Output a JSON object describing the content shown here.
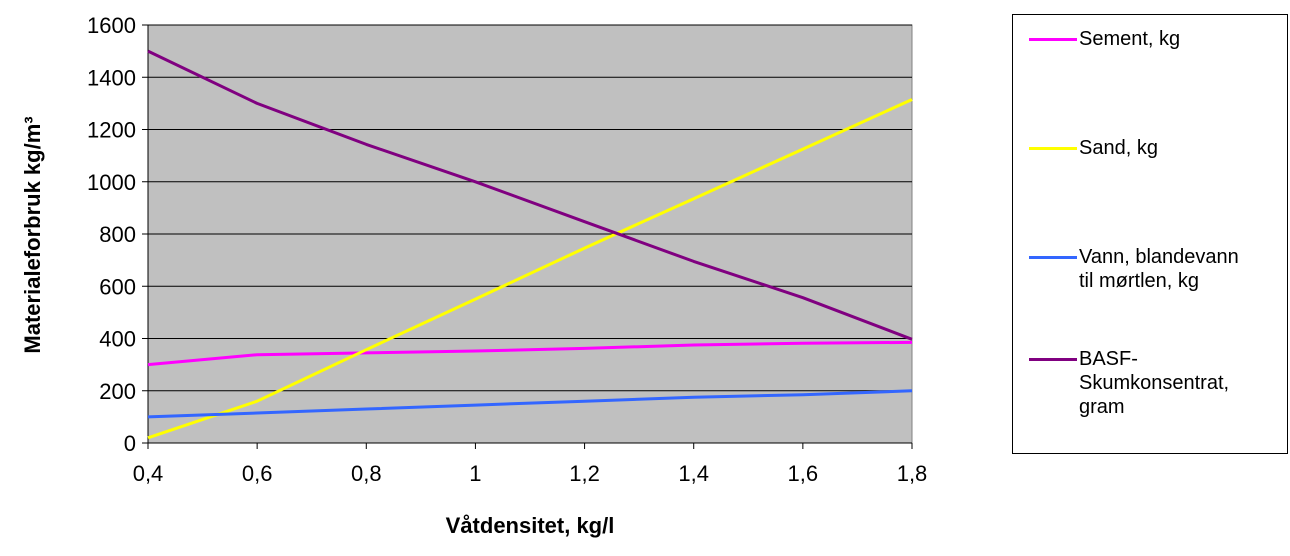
{
  "chart_data": {
    "type": "line",
    "title": "",
    "xlabel": "Våtdensitet, kg/l",
    "ylabel": "Materialeforbruk kg/m³",
    "x": [
      "0,4",
      "0,6",
      "0,8",
      "1",
      "1,2",
      "1,4",
      "1,6",
      "1,8"
    ],
    "ylim": [
      0,
      1600
    ],
    "yticks": [
      "0",
      "200",
      "400",
      "600",
      "800",
      "1000",
      "1200",
      "1400",
      "1600"
    ],
    "grid": true,
    "legend_position": "right",
    "plot_background": "#c0c0c0",
    "series": [
      {
        "name": "Sement, kg",
        "color": "#ff00ff",
        "values": [
          300,
          338,
          345,
          352,
          362,
          375,
          382,
          385
        ]
      },
      {
        "name": "Sand, kg",
        "color": "#ffff00",
        "values": [
          20,
          160,
          357,
          551,
          746,
          935,
          1125,
          1315
        ]
      },
      {
        "name": "Vann, blandevann til mørtlen, kg",
        "color": "#3366ff",
        "values": [
          100,
          115,
          130,
          145,
          160,
          175,
          185,
          200
        ]
      },
      {
        "name": "BASF-Skumkonsentrat, gram",
        "color": "#800080",
        "values": [
          1500,
          1300,
          1143,
          1000,
          847,
          695,
          556,
          397
        ]
      }
    ]
  },
  "legend": {
    "items": [
      {
        "lines": [
          "Sement, kg"
        ]
      },
      {
        "lines": [
          "Sand, kg"
        ]
      },
      {
        "lines": [
          "Vann, blandevann",
          "til mørtlen, kg"
        ]
      },
      {
        "lines": [
          "BASF-",
          "Skumkonsentrat,",
          "gram"
        ]
      }
    ]
  }
}
